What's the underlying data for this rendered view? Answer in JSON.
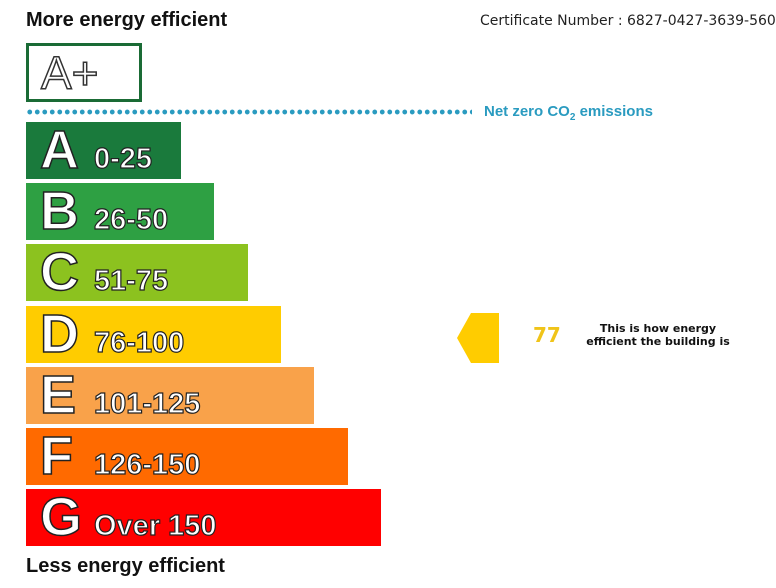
{
  "top_label": "More energy efficient",
  "bottom_label": "Less energy efficient",
  "certificate": "Certificate Number : 6827-0427-3639-560",
  "top_band": "A+",
  "net_zero": {
    "text": "Net zero CO",
    "sub": "2",
    "suffix": " emissions",
    "color": "#2a9bc0"
  },
  "bands": [
    {
      "letter": "A",
      "range": "0-25",
      "color": "#1a7a3c"
    },
    {
      "letter": "B",
      "range": "26-50",
      "color": "#2ea043"
    },
    {
      "letter": "C",
      "range": "51-75",
      "color": "#8cc21f"
    },
    {
      "letter": "D",
      "range": "76-100",
      "color": "#ffcc00"
    },
    {
      "letter": "E",
      "range": "101-125",
      "color": "#f9a24a"
    },
    {
      "letter": "F",
      "range": "126-150",
      "color": "#ff6a00"
    },
    {
      "letter": "G",
      "range": "Over 150",
      "color": "#ff0000"
    }
  ],
  "rating": {
    "value": "77",
    "band": "D",
    "color": "#ffcc00",
    "description": "This is how energy efficient the building is"
  }
}
